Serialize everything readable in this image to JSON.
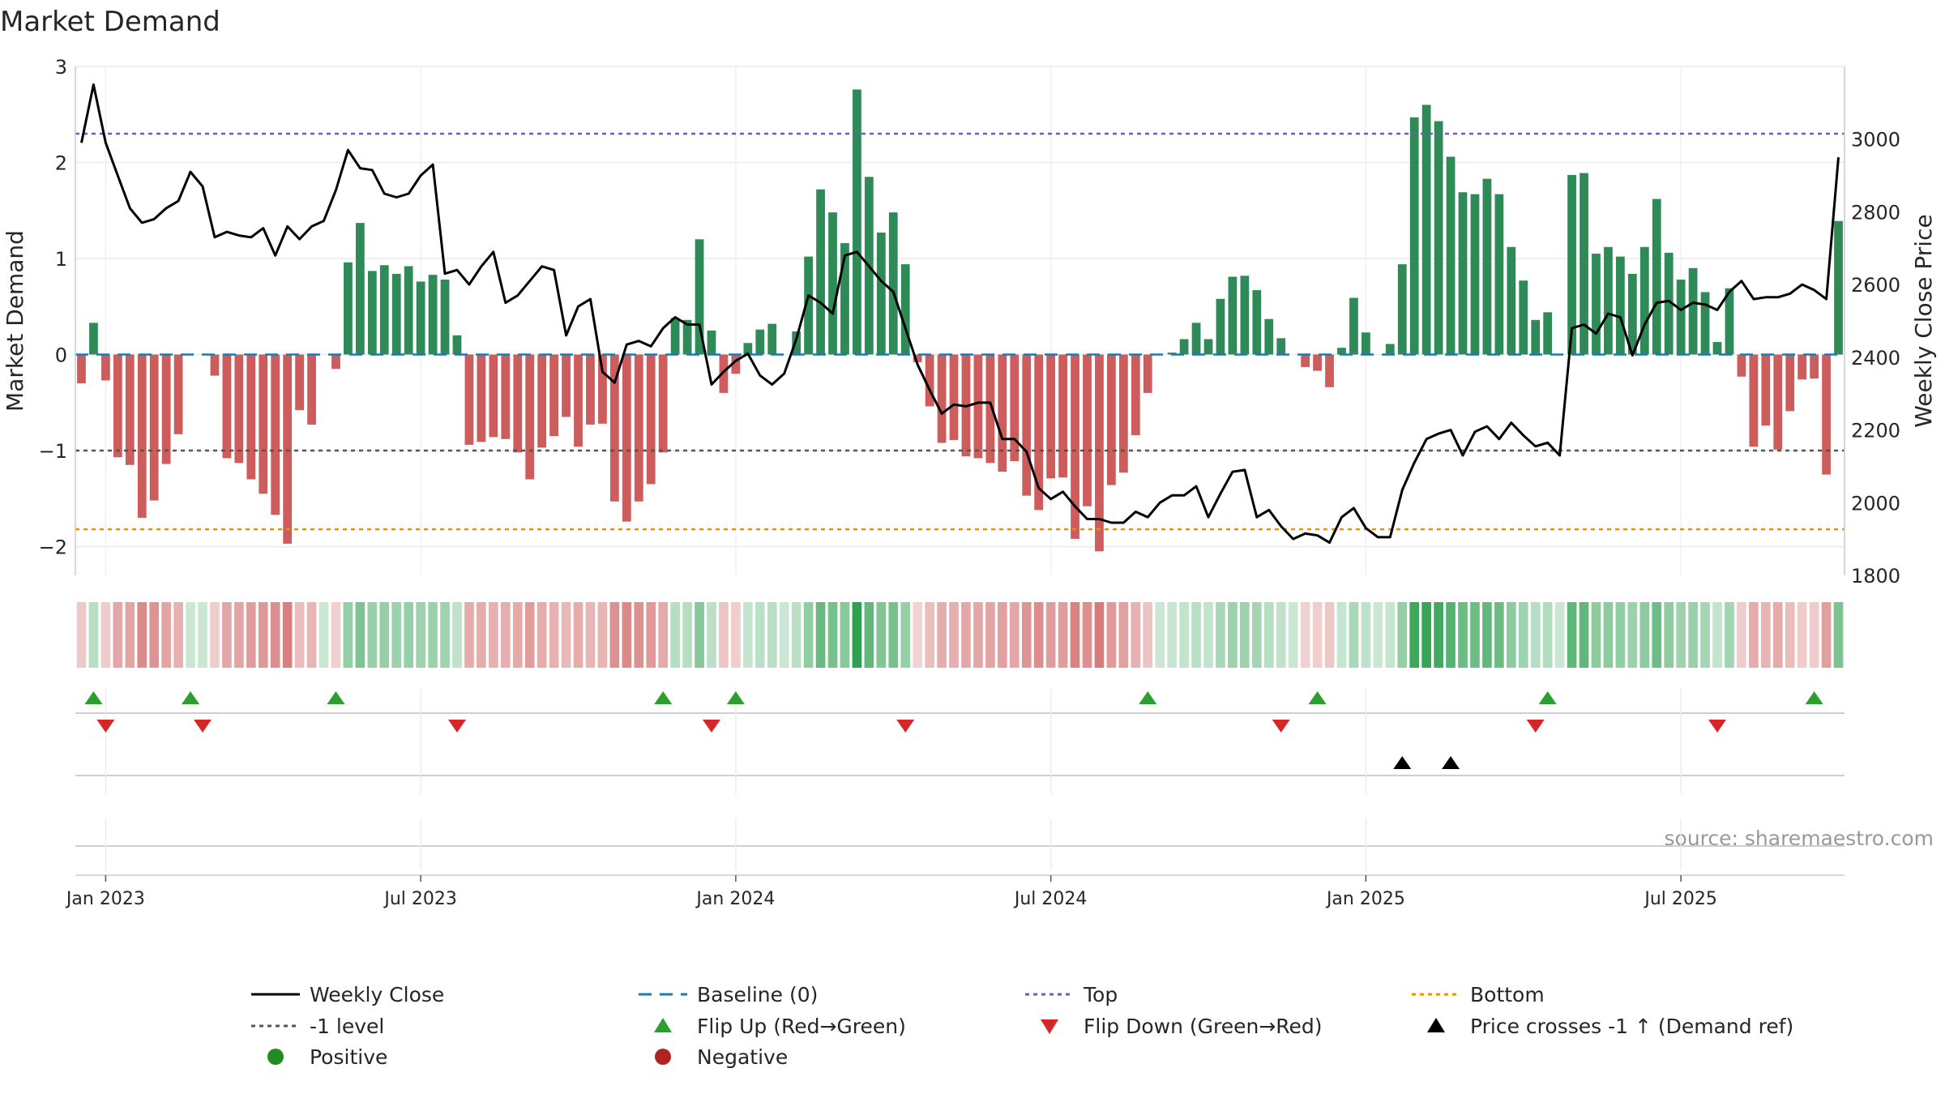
{
  "chart_data": {
    "type": "bar",
    "title": "Market Demand",
    "ylabel": "Market Demand",
    "y2label": "Weekly Close Price",
    "ylim": [
      -2.3,
      3.0
    ],
    "y2lim": [
      1800,
      3200
    ],
    "yticks": [
      -2,
      -1,
      0,
      1,
      2,
      3
    ],
    "y2ticks": [
      1800,
      2000,
      2200,
      2400,
      2600,
      2800,
      3000
    ],
    "xticks": [
      {
        "label": "Jan 2023",
        "week": 2
      },
      {
        "label": "Jul 2023",
        "week": 28
      },
      {
        "label": "Jan 2024",
        "week": 54
      },
      {
        "label": "Jul 2024",
        "week": 80
      },
      {
        "label": "Jan 2025",
        "week": 106
      },
      {
        "label": "Jul 2025",
        "week": 132
      }
    ],
    "levels": {
      "top": 2.3,
      "minus_one": -1.0,
      "bottom": -1.82,
      "baseline": 0
    },
    "colors": {
      "positive": "#2e8b57",
      "negative": "#cd5c5c",
      "price": "#000000",
      "top": "#6a5acd",
      "bottom": "#e69500",
      "minus_one": "#555555",
      "baseline": "#1f77b4",
      "flip_up": "#2ca02c",
      "flip_down": "#d62728"
    },
    "demand": [
      -0.3,
      0.33,
      -0.27,
      -1.07,
      -1.15,
      -1.7,
      -1.52,
      -1.14,
      -0.83,
      0,
      0,
      -0.22,
      -1.08,
      -1.13,
      -1.3,
      -1.45,
      -1.67,
      -1.97,
      -0.58,
      -0.73,
      0,
      -0.15,
      0.96,
      1.37,
      0.87,
      0.93,
      0.84,
      0.92,
      0.76,
      0.83,
      0.78,
      0.2,
      -0.94,
      -0.91,
      -0.86,
      -0.88,
      -1.02,
      -1.3,
      -0.97,
      -0.85,
      -0.65,
      -0.96,
      -0.73,
      -0.72,
      -1.53,
      -1.74,
      -1.53,
      -1.35,
      -1.02,
      0.38,
      0.36,
      1.2,
      0.25,
      -0.4,
      -0.2,
      0.12,
      0.26,
      0.32,
      0,
      0.24,
      1.02,
      1.72,
      1.48,
      1.16,
      2.76,
      1.85,
      1.27,
      1.48,
      0.94,
      -0.08,
      -0.54,
      -0.92,
      -0.89,
      -1.06,
      -1.08,
      -1.13,
      -1.22,
      -1.11,
      -1.47,
      -1.62,
      -1.29,
      -1.28,
      -1.92,
      -1.58,
      -2.05,
      -1.36,
      -1.23,
      -0.84,
      -0.4,
      0,
      0.02,
      0.16,
      0.33,
      0.16,
      0.58,
      0.81,
      0.82,
      0.67,
      0.37,
      0.17,
      0,
      -0.13,
      -0.17,
      -0.34,
      0.07,
      0.59,
      0.23,
      0,
      0.11,
      0.94,
      2.47,
      2.6,
      2.43,
      2.06,
      1.69,
      1.67,
      1.83,
      1.67,
      1.12,
      0.77,
      0.36,
      0.44,
      0,
      1.87,
      1.89,
      1.05,
      1.12,
      1.02,
      0.84,
      1.12,
      1.62,
      1.06,
      0.78,
      0.9,
      0.65,
      0.13,
      0.69,
      -0.23,
      -0.96,
      -0.74,
      -0.99,
      -0.59,
      -0.26,
      -0.25,
      -1.25,
      1.39
    ],
    "weekly_close": [
      2990,
      3150,
      2990,
      2900,
      2810,
      2770,
      2780,
      2810,
      2830,
      2910,
      2870,
      2730,
      2745,
      2735,
      2730,
      2755,
      2680,
      2760,
      2725,
      2760,
      2775,
      2860,
      2970,
      2920,
      2915,
      2850,
      2840,
      2850,
      2900,
      2930,
      2630,
      2640,
      2600,
      2650,
      2690,
      2550,
      2570,
      2610,
      2650,
      2640,
      2460,
      2540,
      2560,
      2360,
      2330,
      2435,
      2445,
      2430,
      2480,
      2510,
      2490,
      2490,
      2325,
      2360,
      2390,
      2410,
      2350,
      2325,
      2355,
      2450,
      2570,
      2550,
      2520,
      2680,
      2690,
      2650,
      2610,
      2580,
      2480,
      2380,
      2310,
      2245,
      2270,
      2265,
      2275,
      2275,
      2175,
      2175,
      2140,
      2040,
      2010,
      2030,
      1990,
      1955,
      1955,
      1945,
      1945,
      1975,
      1960,
      2000,
      2020,
      2020,
      2045,
      1960,
      2025,
      2085,
      2090,
      1960,
      1980,
      1935,
      1900,
      1915,
      1910,
      1890,
      1960,
      1985,
      1930,
      1905,
      1905,
      2035,
      2110,
      2175,
      2190,
      2200,
      2130,
      2195,
      2210,
      2175,
      2220,
      2185,
      2155,
      2165,
      2130,
      2480,
      2490,
      2465,
      2520,
      2510,
      2405,
      2490,
      2550,
      2555,
      2530,
      2550,
      2545,
      2530,
      2580,
      2610,
      2560,
      2565,
      2565,
      2575,
      2600,
      2585,
      2560,
      2950
    ],
    "flip_up_weeks": [
      1,
      9,
      21,
      48,
      54,
      88,
      102,
      121,
      143
    ],
    "flip_down_weeks": [
      2,
      10,
      31,
      52,
      68,
      99,
      120,
      135
    ],
    "price_cross_weeks": [
      109,
      113
    ],
    "source": "source: sharemaestro.com",
    "legend": [
      {
        "label": "Weekly Close",
        "key": "line-black"
      },
      {
        "label": "Baseline (0)",
        "key": "dash-blue"
      },
      {
        "label": "Top",
        "key": "dot-purple"
      },
      {
        "label": "Bottom",
        "key": "dot-orange"
      },
      {
        "label": "-1 level",
        "key": "dot-gray"
      },
      {
        "label": "Flip Up (Red→Green)",
        "key": "tri-up-green"
      },
      {
        "label": "Flip Down (Green→Red)",
        "key": "tri-down-red"
      },
      {
        "label": "Price crosses -1 ↑ (Demand ref)",
        "key": "tri-up-black"
      },
      {
        "label": "Positive",
        "key": "dot-green"
      },
      {
        "label": "Negative",
        "key": "dot-red"
      }
    ]
  }
}
